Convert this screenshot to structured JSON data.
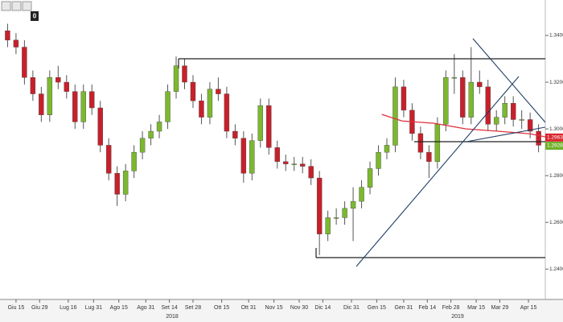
{
  "toolbar": {
    "badge": "0"
  },
  "chart_data": {
    "type": "candlestick",
    "xlim": [
      -9.5,
      314
    ],
    "ylim": [
      1.227,
      1.35
    ],
    "xticks": [
      {
        "value": 0,
        "label": "Giu 15"
      },
      {
        "value": 14,
        "label": "Giu 29"
      },
      {
        "value": 31,
        "label": "Lug 16"
      },
      {
        "value": 46,
        "label": "Lug 31"
      },
      {
        "value": 61,
        "label": "Ago 15"
      },
      {
        "value": 77,
        "label": "Ago 31"
      },
      {
        "value": 91,
        "label": "Set 14"
      },
      {
        "value": 105,
        "label": "Set 28"
      },
      {
        "value": 122,
        "label": "Ott 15"
      },
      {
        "value": 138,
        "label": "Ott 31"
      },
      {
        "value": 153,
        "label": "Nov 15"
      },
      {
        "value": 168,
        "label": "Nov 30"
      },
      {
        "value": 182,
        "label": "Dic 14"
      },
      {
        "value": 199,
        "label": "Dic 31"
      },
      {
        "value": 214,
        "label": "Gen 15"
      },
      {
        "value": 230,
        "label": "Gen 31"
      },
      {
        "value": 244,
        "label": "Feb 14"
      },
      {
        "value": 258,
        "label": "Feb 28"
      },
      {
        "value": 273,
        "label": "Mar 15"
      },
      {
        "value": 287,
        "label": "Mar 29"
      },
      {
        "value": 304,
        "label": "Apr 15"
      }
    ],
    "year_labels": [
      {
        "value": 92.6,
        "label": "2018"
      },
      {
        "value": 262,
        "label": "2019"
      }
    ],
    "yticks": [
      {
        "value": 1.34,
        "label": "1.3400"
      },
      {
        "value": 1.32,
        "label": "1.3200"
      },
      {
        "value": 1.3,
        "label": "1.3000"
      },
      {
        "value": 1.28,
        "label": "1.2800"
      },
      {
        "value": 1.26,
        "label": "1.2600"
      },
      {
        "value": 1.24,
        "label": "1.2400"
      }
    ],
    "up_color": "#7cb82f",
    "down_color": "#c8202a",
    "x": [
      -5,
      0,
      5,
      10,
      15,
      20,
      25,
      30,
      35,
      40,
      45,
      50,
      55,
      60,
      65,
      70,
      75,
      80,
      85,
      90,
      95,
      100,
      105,
      110,
      115,
      120,
      125,
      130,
      135,
      140,
      145,
      150,
      155,
      160,
      165,
      170,
      175,
      180,
      185,
      190,
      195,
      200,
      205,
      210,
      215,
      220,
      225,
      230,
      235,
      240,
      245,
      250,
      255,
      260,
      265,
      270,
      275,
      280,
      285,
      290,
      295,
      300,
      305,
      310
    ],
    "open": [
      1.342,
      1.338,
      1.335,
      1.322,
      1.315,
      1.306,
      1.322,
      1.32,
      1.316,
      1.303,
      1.316,
      1.309,
      1.293,
      1.281,
      1.272,
      1.282,
      1.29,
      1.296,
      1.299,
      1.303,
      1.316,
      1.327,
      1.32,
      1.312,
      1.305,
      1.317,
      1.315,
      1.299,
      1.296,
      1.281,
      1.295,
      1.31,
      1.292,
      1.286,
      1.285,
      1.285,
      1.284,
      1.279,
      1.255,
      1.262,
      1.262,
      1.266,
      1.269,
      1.275,
      1.283,
      1.29,
      1.293,
      1.318,
      1.308,
      1.298,
      1.29,
      1.286,
      1.302,
      1.322,
      1.322,
      1.305,
      1.32,
      1.318,
      1.302,
      1.305,
      1.311,
      1.304,
      1.304,
      1.299
    ],
    "high": [
      1.345,
      1.341,
      1.338,
      1.325,
      1.318,
      1.325,
      1.327,
      1.323,
      1.319,
      1.319,
      1.319,
      1.312,
      1.296,
      1.284,
      1.285,
      1.293,
      1.299,
      1.302,
      1.306,
      1.319,
      1.331,
      1.33,
      1.323,
      1.315,
      1.32,
      1.322,
      1.318,
      1.302,
      1.299,
      1.298,
      1.313,
      1.313,
      1.295,
      1.289,
      1.288,
      1.288,
      1.287,
      1.282,
      1.265,
      1.266,
      1.269,
      1.275,
      1.278,
      1.286,
      1.293,
      1.296,
      1.322,
      1.321,
      1.311,
      1.301,
      1.293,
      1.305,
      1.325,
      1.332,
      1.325,
      1.335,
      1.325,
      1.321,
      1.308,
      1.314,
      1.314,
      1.308,
      1.307,
      1.302
    ],
    "low": [
      1.335,
      1.332,
      1.319,
      1.312,
      1.303,
      1.303,
      1.317,
      1.313,
      1.3,
      1.3,
      1.306,
      1.29,
      1.278,
      1.267,
      1.269,
      1.279,
      1.287,
      1.293,
      1.296,
      1.3,
      1.313,
      1.317,
      1.309,
      1.302,
      1.302,
      1.312,
      1.296,
      1.293,
      1.277,
      1.278,
      1.292,
      1.289,
      1.283,
      1.282,
      1.282,
      1.281,
      1.276,
      1.246,
      1.252,
      1.259,
      1.259,
      1.252,
      1.266,
      1.272,
      1.28,
      1.287,
      1.29,
      1.305,
      1.295,
      1.287,
      1.279,
      1.283,
      1.299,
      1.315,
      1.302,
      1.302,
      1.315,
      1.299,
      1.299,
      1.302,
      1.301,
      1.3,
      1.296,
      1.29
    ],
    "close": [
      1.338,
      1.335,
      1.322,
      1.315,
      1.306,
      1.322,
      1.32,
      1.316,
      1.303,
      1.316,
      1.309,
      1.293,
      1.281,
      1.272,
      1.282,
      1.29,
      1.296,
      1.299,
      1.303,
      1.316,
      1.327,
      1.32,
      1.312,
      1.305,
      1.317,
      1.315,
      1.299,
      1.296,
      1.281,
      1.295,
      1.31,
      1.292,
      1.286,
      1.285,
      1.285,
      1.284,
      1.279,
      1.255,
      1.262,
      1.262,
      1.266,
      1.269,
      1.275,
      1.283,
      1.29,
      1.293,
      1.318,
      1.308,
      1.298,
      1.29,
      1.286,
      1.302,
      1.322,
      1.322,
      1.305,
      1.32,
      1.318,
      1.302,
      1.305,
      1.311,
      1.304,
      1.304,
      1.299,
      1.293
    ],
    "moving_average": {
      "color": "#e0303a",
      "x": [
        217,
        229,
        248,
        267,
        286,
        305,
        314
      ],
      "values": [
        1.3062,
        1.3034,
        1.3024,
        1.3,
        1.299,
        1.2979,
        1.2966
      ]
    },
    "price_tags": [
      {
        "value": 1.2963,
        "color": "#d9262e"
      },
      {
        "value": 1.2928,
        "color": "#6fb02a"
      }
    ]
  }
}
